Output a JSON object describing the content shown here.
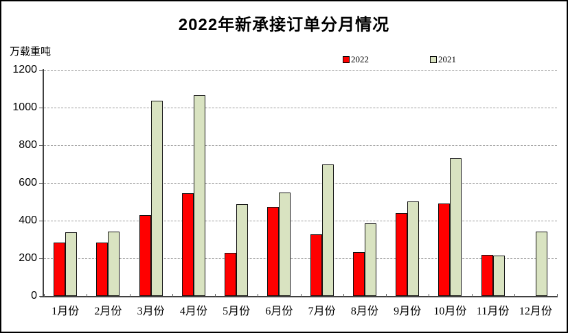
{
  "title": "2022年新承接订单分月情况",
  "unit_label": "万载重吨",
  "legend": {
    "items": [
      {
        "label": "2022",
        "color": "#ff0000"
      },
      {
        "label": "2021",
        "color": "#d9e3c1"
      }
    ]
  },
  "colors": {
    "series_2022": "#ff0000",
    "series_2021": "#d9e3c1",
    "bar_border": "#121212",
    "axis": "#404040",
    "gridline": "#999999"
  },
  "chart_data": {
    "type": "bar",
    "title": "2022年新承接订单分月情况",
    "ylabel": "万载重吨",
    "categories": [
      "1月份",
      "2月份",
      "3月份",
      "4月份",
      "5月份",
      "6月份",
      "7月份",
      "8月份",
      "9月份",
      "10月份",
      "11月份",
      "12月份"
    ],
    "series": [
      {
        "name": "2022",
        "color": "#ff0000",
        "values": [
          283,
          283,
          428,
          546,
          228,
          473,
          326,
          232,
          439,
          490,
          220,
          0
        ]
      },
      {
        "name": "2021",
        "color": "#d9e3c1",
        "values": [
          337,
          341,
          1036,
          1066,
          486,
          548,
          698,
          387,
          501,
          730,
          215,
          340
        ]
      }
    ],
    "ylim": [
      0,
      1200
    ],
    "yticks": [
      0,
      200,
      400,
      600,
      800,
      1000,
      1200
    ],
    "grid": "horizontal-dashed",
    "legend_position": "top-center"
  }
}
